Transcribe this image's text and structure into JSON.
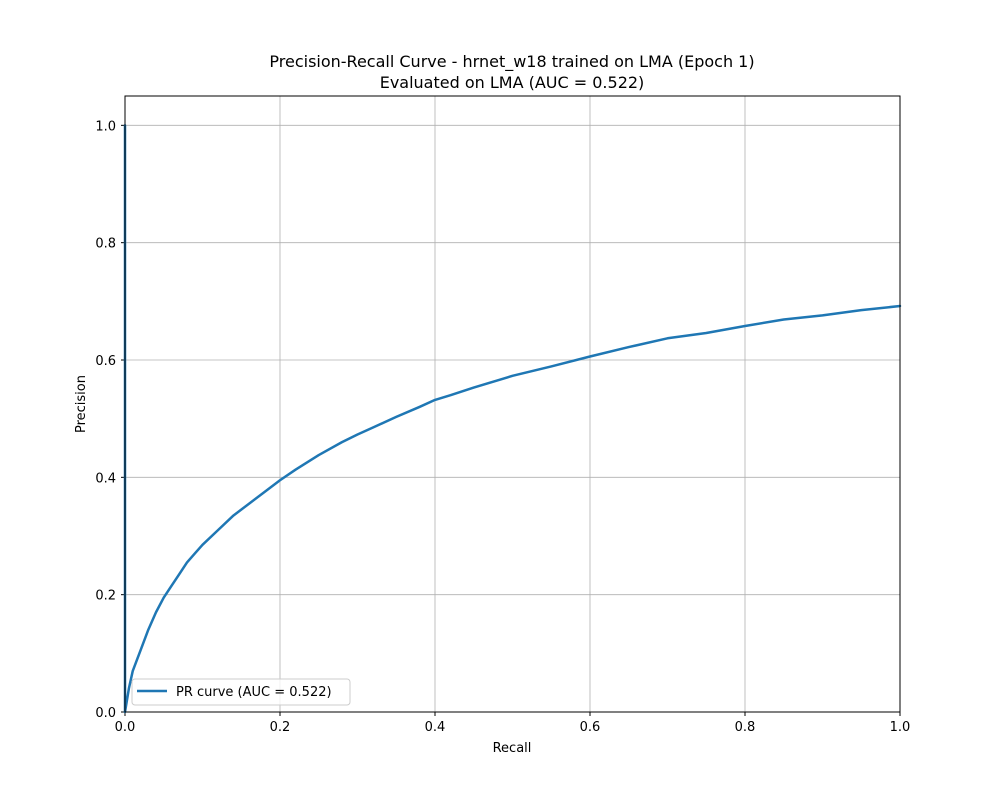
{
  "chart_data": {
    "type": "line",
    "title": "Precision-Recall Curve - hrnet_w18 trained on LMA (Epoch 1)",
    "subtitle": "Evaluated on LMA (AUC = 0.522)",
    "xlabel": "Recall",
    "ylabel": "Precision",
    "xlim": [
      0.0,
      1.0
    ],
    "ylim": [
      0.0,
      1.05
    ],
    "xticks": [
      "0.0",
      "0.2",
      "0.4",
      "0.6",
      "0.8",
      "1.0"
    ],
    "yticks": [
      "0.0",
      "0.2",
      "0.4",
      "0.6",
      "0.8",
      "1.0"
    ],
    "grid": true,
    "legend_position": "lower-left",
    "series": [
      {
        "name": "PR curve (AUC = 0.522)",
        "color": "#1f77b4",
        "x": [
          0.0,
          0.0,
          0.005,
          0.01,
          0.02,
          0.03,
          0.04,
          0.05,
          0.06,
          0.07,
          0.08,
          0.09,
          0.1,
          0.12,
          0.14,
          0.16,
          0.18,
          0.2,
          0.22,
          0.25,
          0.28,
          0.3,
          0.32,
          0.35,
          0.38,
          0.4,
          0.42,
          0.45,
          0.48,
          0.5,
          0.55,
          0.6,
          0.65,
          0.7,
          0.75,
          0.8,
          0.85,
          0.9,
          0.95,
          1.0
        ],
        "y": [
          1.0,
          0.0,
          0.04,
          0.07,
          0.105,
          0.14,
          0.17,
          0.195,
          0.215,
          0.235,
          0.255,
          0.27,
          0.285,
          0.31,
          0.335,
          0.355,
          0.375,
          0.395,
          0.413,
          0.438,
          0.46,
          0.473,
          0.485,
          0.503,
          0.52,
          0.532,
          0.54,
          0.553,
          0.565,
          0.573,
          0.589,
          0.606,
          0.622,
          0.637,
          0.646,
          0.658,
          0.669,
          0.676,
          0.685,
          0.692
        ]
      }
    ]
  }
}
